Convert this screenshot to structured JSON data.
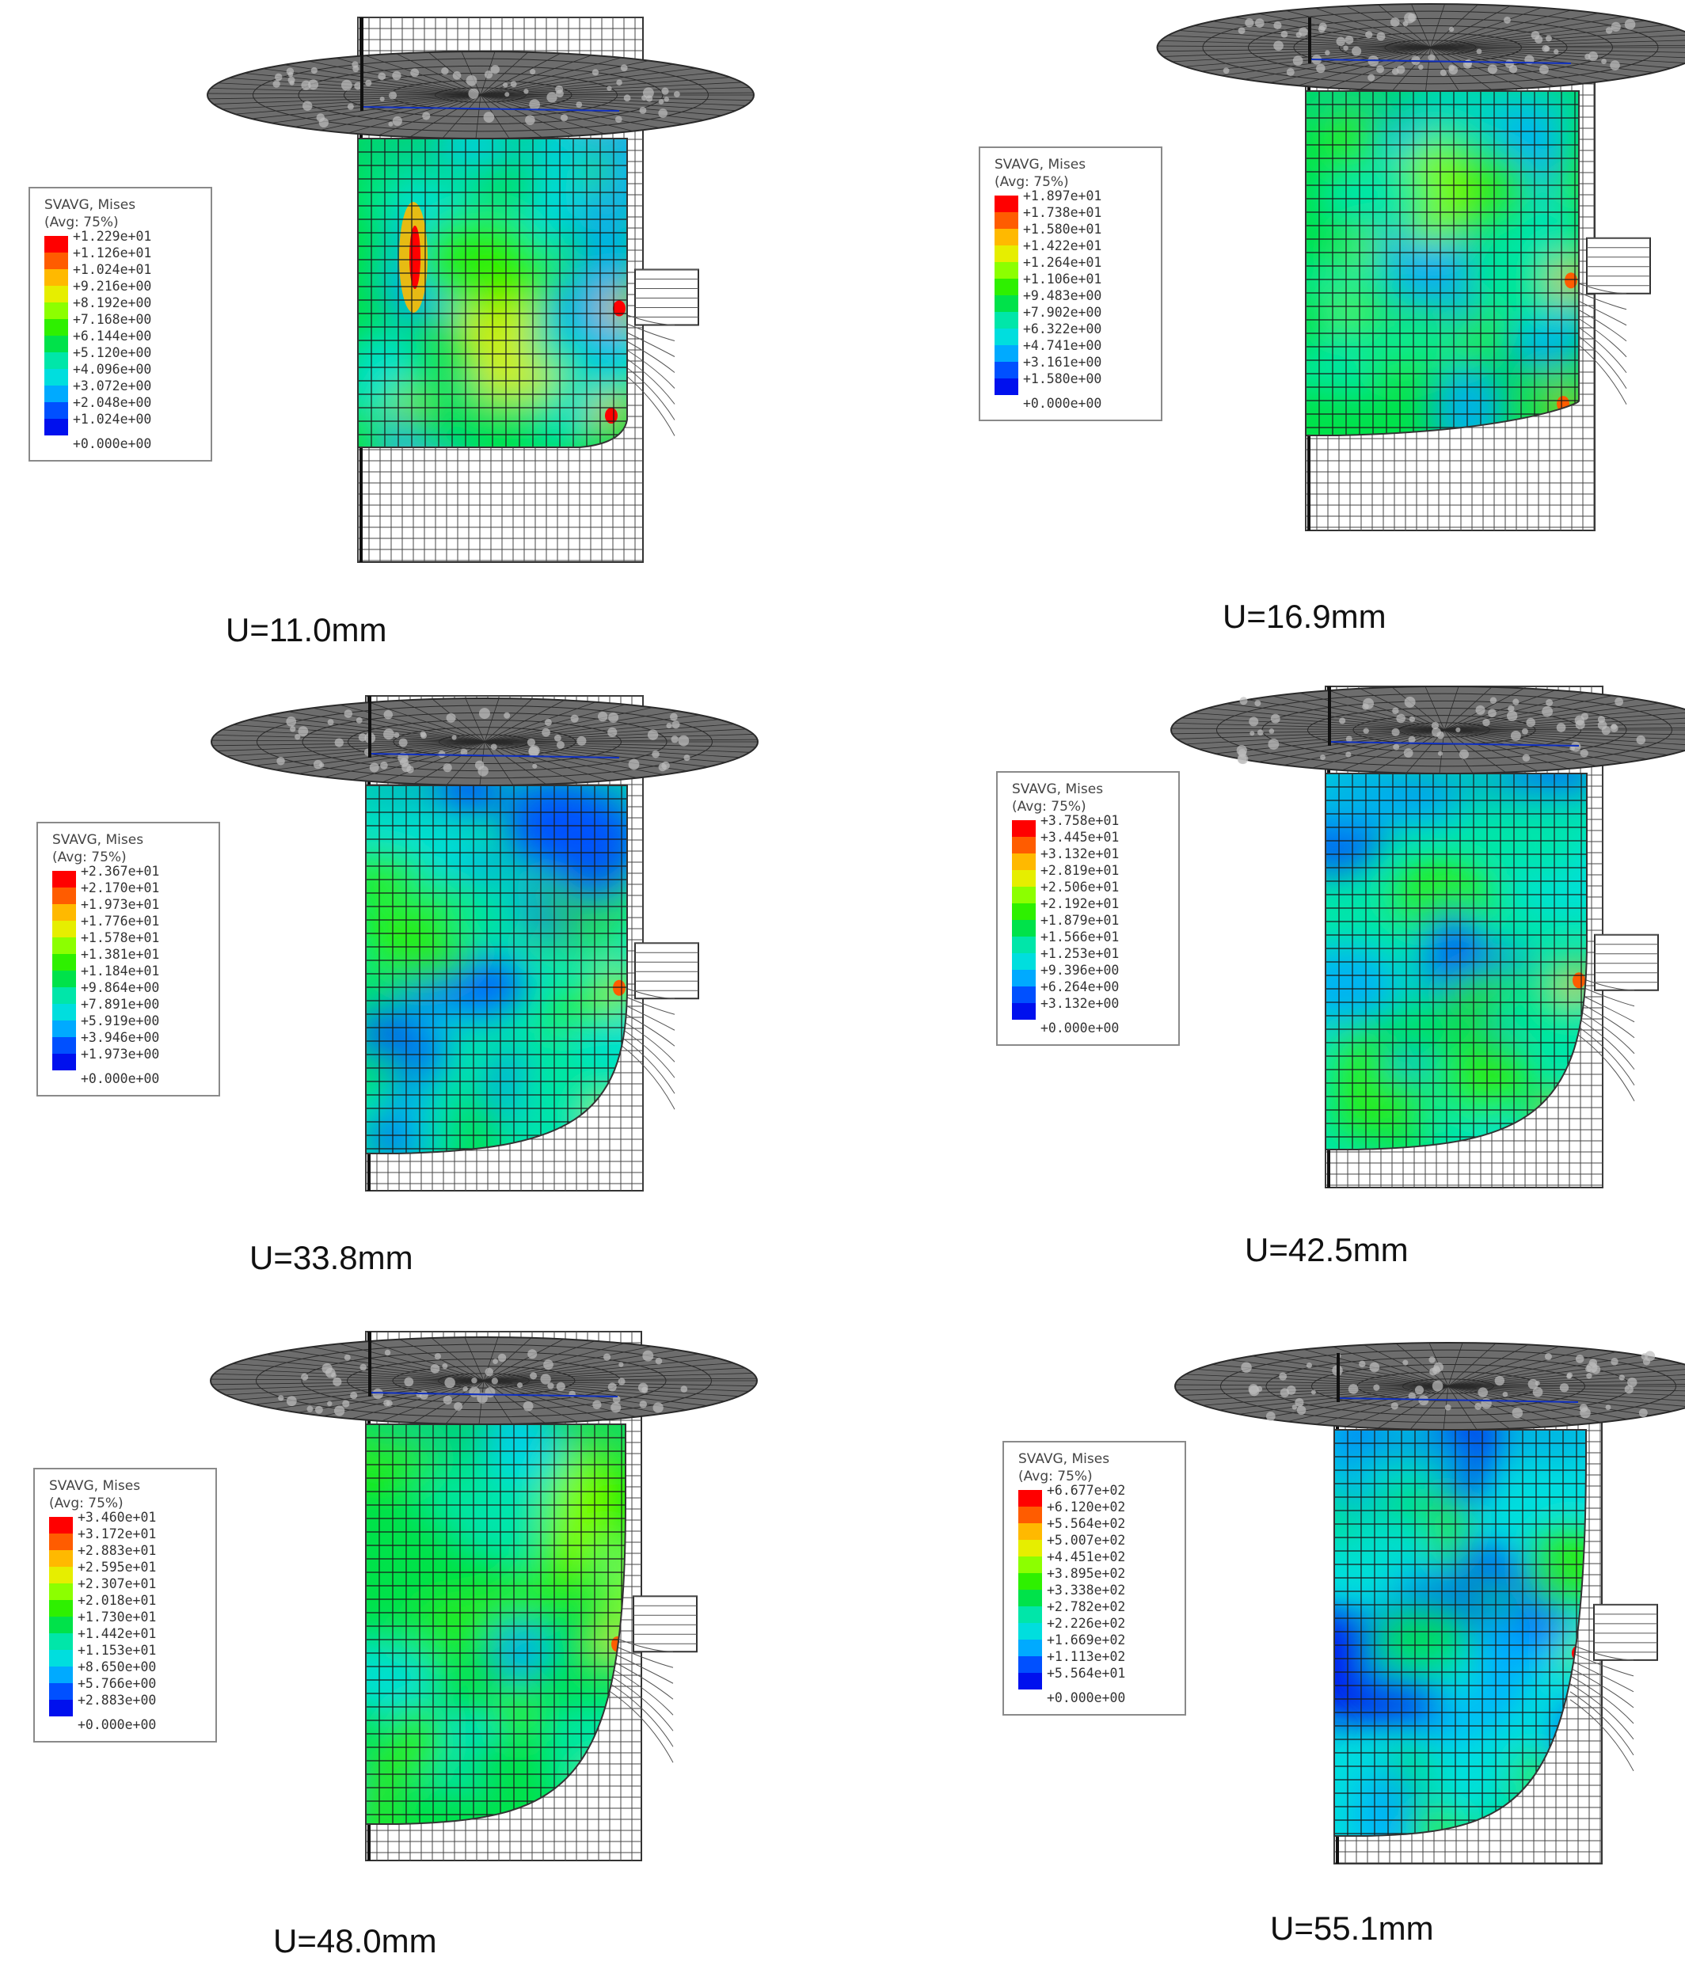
{
  "palette": [
    "#ff0000",
    "#ff5c00",
    "#ffb900",
    "#e6ee00",
    "#8cff00",
    "#2ef000",
    "#00e24a",
    "#00e6a9",
    "#00dede",
    "#00aaff",
    "#0050ff",
    "#0010ee"
  ],
  "colors": {
    "mesh_line": "#222222",
    "rigid_disk": "#5a5a5a",
    "legend_border": "#8a8a8a"
  },
  "panels": [
    {
      "caption": "U=11.0mm",
      "legend_title": "SVAVG, Mises",
      "legend_avg": "(Avg: 75%)",
      "legend_values": [
        "+1.229e+01",
        "+1.126e+01",
        "+1.024e+01",
        "+9.216e+00",
        "+8.192e+00",
        "+7.168e+00",
        "+6.144e+00",
        "+5.120e+00",
        "+4.096e+00",
        "+3.072e+00",
        "+2.048e+00",
        "+1.024e+00",
        "+0.000e+00"
      ],
      "field_colors": [
        "#00aaff",
        "#00dede",
        "#00e6a9",
        "#00e24a",
        "#2ef000",
        "#e6ee00",
        "#ffb900",
        "#ff0000"
      ]
    },
    {
      "caption": "U=16.9mm",
      "legend_title": "SVAVG, Mises",
      "legend_avg": "(Avg: 75%)",
      "legend_values": [
        "+1.897e+01",
        "+1.738e+01",
        "+1.580e+01",
        "+1.422e+01",
        "+1.264e+01",
        "+1.106e+01",
        "+9.483e+00",
        "+7.902e+00",
        "+6.322e+00",
        "+4.741e+00",
        "+3.161e+00",
        "+1.580e+00",
        "+0.000e+00"
      ],
      "field_colors": [
        "#00aaff",
        "#00dede",
        "#00e6a9",
        "#00e24a",
        "#2ef000",
        "#8cff00",
        "#ffb900",
        "#ff5c00"
      ]
    },
    {
      "caption": "U=33.8mm",
      "legend_title": "SVAVG, Mises",
      "legend_avg": "(Avg: 75%)",
      "legend_values": [
        "+2.367e+01",
        "+2.170e+01",
        "+1.973e+01",
        "+1.776e+01",
        "+1.578e+01",
        "+1.381e+01",
        "+1.184e+01",
        "+9.864e+00",
        "+7.891e+00",
        "+5.919e+00",
        "+3.946e+00",
        "+1.973e+00",
        "+0.000e+00"
      ],
      "field_colors": [
        "#0050ff",
        "#00aaff",
        "#00dede",
        "#00e6a9",
        "#00e24a",
        "#2ef000",
        "#e6ee00",
        "#ff5c00"
      ]
    },
    {
      "caption": "U=42.5mm",
      "legend_title": "SVAVG, Mises",
      "legend_avg": "(Avg: 75%)",
      "legend_values": [
        "+3.758e+01",
        "+3.445e+01",
        "+3.132e+01",
        "+2.819e+01",
        "+2.506e+01",
        "+2.192e+01",
        "+1.879e+01",
        "+1.566e+01",
        "+1.253e+01",
        "+9.396e+00",
        "+6.264e+00",
        "+3.132e+00",
        "+0.000e+00"
      ],
      "field_colors": [
        "#0050ff",
        "#00aaff",
        "#00dede",
        "#00e6a9",
        "#00e24a",
        "#2ef000",
        "#ffb900",
        "#ff5c00"
      ]
    },
    {
      "caption": "U=48.0mm",
      "legend_title": "SVAVG, Mises",
      "legend_avg": "(Avg: 75%)",
      "legend_values": [
        "+3.460e+01",
        "+3.172e+01",
        "+2.883e+01",
        "+2.595e+01",
        "+2.307e+01",
        "+2.018e+01",
        "+1.730e+01",
        "+1.442e+01",
        "+1.153e+01",
        "+8.650e+00",
        "+5.766e+00",
        "+2.883e+00",
        "+0.000e+00"
      ],
      "field_colors": [
        "#00aaff",
        "#00dede",
        "#00e6a9",
        "#00e24a",
        "#2ef000",
        "#8cff00",
        "#e6ee00",
        "#ff5c00"
      ]
    },
    {
      "caption": "U=55.1mm",
      "legend_title": "SVAVG, Mises",
      "legend_avg": "(Avg: 75%)",
      "legend_values": [
        "+6.677e+02",
        "+6.120e+02",
        "+5.564e+02",
        "+5.007e+02",
        "+4.451e+02",
        "+3.895e+02",
        "+3.338e+02",
        "+2.782e+02",
        "+2.226e+02",
        "+1.669e+02",
        "+1.113e+02",
        "+5.564e+01",
        "+0.000e+00"
      ],
      "field_colors": [
        "#0010ee",
        "#0050ff",
        "#00aaff",
        "#00dede",
        "#00e24a",
        "#2ef000",
        "#8cff00",
        "#ff0000"
      ]
    }
  ]
}
